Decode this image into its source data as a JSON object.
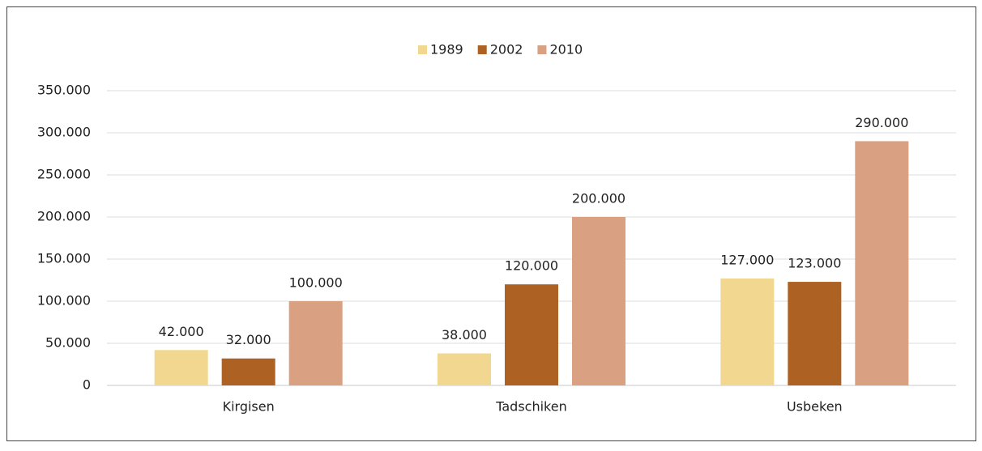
{
  "chart_data": {
    "type": "bar",
    "categories": [
      "Kirgisen",
      "Tadschiken",
      "Usbeken"
    ],
    "series": [
      {
        "name": "1989",
        "color": "#f1d78f",
        "values": [
          42000,
          38000,
          127000
        ],
        "value_labels": [
          "42.000",
          "38.000",
          "127.000"
        ]
      },
      {
        "name": "2002",
        "color": "#ad6123",
        "values": [
          32000,
          120000,
          123000
        ],
        "value_labels": [
          "32.000",
          "120.000",
          "123.000"
        ]
      },
      {
        "name": "2010",
        "color": "#d9a081",
        "values": [
          100000,
          200000,
          290000
        ],
        "value_labels": [
          "100.000",
          "200.000",
          "290.000"
        ]
      }
    ],
    "ylim": [
      0,
      350000
    ],
    "yticks": [
      0,
      {
        "value": 50000,
        "label": "50.000"
      },
      {
        "value": 100000,
        "label": "100.000"
      },
      {
        "value": 150000,
        "label": "150.000"
      },
      {
        "value": 200000,
        "label": "200.000"
      },
      {
        "value": 250000,
        "label": "250.000"
      },
      {
        "value": 300000,
        "label": "300.000"
      },
      {
        "value": 350000,
        "label": "350.000"
      }
    ],
    "grid": true,
    "legend": "top"
  }
}
